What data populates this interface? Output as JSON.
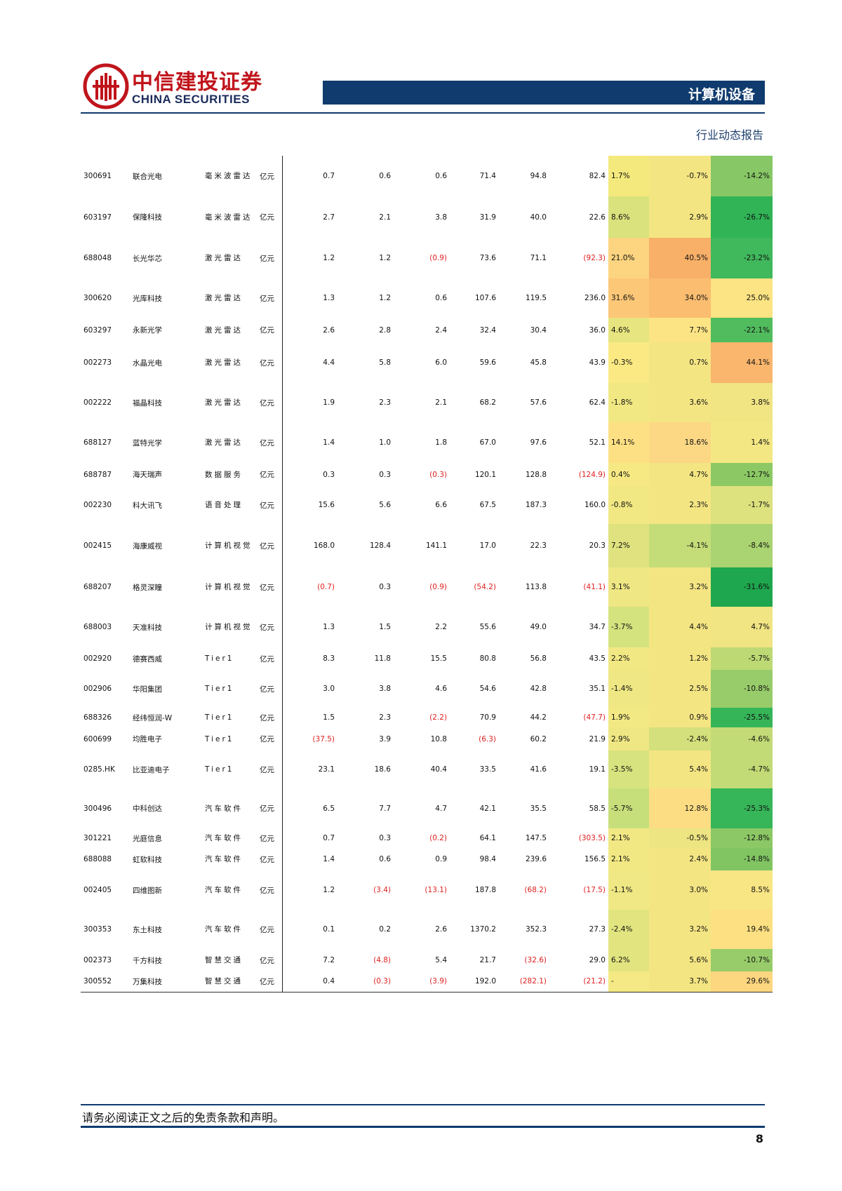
{
  "header": {
    "brand_cn": "中信建投证券",
    "brand_en": "CHINA SECURITIES",
    "section": "计算机设备",
    "report_type": "行业动态报告"
  },
  "colors": {
    "brand_red": "#c0141b",
    "navy": "#0f3b6e",
    "negative": "#e02020"
  },
  "table": {
    "rows": [
      {
        "code": "300691",
        "name": "联合光电",
        "industry": "毫米波雷达",
        "unit": "亿元",
        "v": [
          "0.7",
          "0.6",
          "0.6",
          "71.4",
          "94.8",
          "82.4"
        ],
        "p": [
          "1.7%",
          "-0.7%",
          "-14.2%"
        ],
        "c": [
          "#f4e97c",
          "#f4e583",
          "#87c766"
        ]
      },
      {
        "code": "603197",
        "name": "保隆科技",
        "industry": "毫米波雷达",
        "unit": "亿元",
        "v": [
          "2.7",
          "2.1",
          "3.8",
          "31.9",
          "40.0",
          "22.6"
        ],
        "p": [
          "8.6%",
          "2.9%",
          "-26.7%"
        ],
        "c": [
          "#d9e27c",
          "#f4e583",
          "#30b456"
        ]
      },
      {
        "code": "688048",
        "name": "长光华芯",
        "industry": "激光雷达",
        "unit": "亿元",
        "v": [
          "1.2",
          "1.2",
          "(0.9)",
          "73.6",
          "71.1",
          "(92.3)"
        ],
        "p": [
          "21.0%",
          "40.5%",
          "-23.2%"
        ],
        "c": [
          "#fdd47f",
          "#f8b068",
          "#40b85c"
        ]
      },
      {
        "code": "300620",
        "name": "光库科技",
        "industry": "激光雷达",
        "unit": "亿元",
        "v": [
          "1.3",
          "1.2",
          "0.6",
          "107.6",
          "119.5",
          "236.0"
        ],
        "p": [
          "31.6%",
          "34.0%",
          "25.0%"
        ],
        "c": [
          "#fdc778",
          "#fbbd70",
          "#fce383"
        ]
      },
      {
        "code": "603297",
        "name": "永新光学",
        "industry": "激光雷达",
        "unit": "亿元",
        "v": [
          "2.6",
          "2.8",
          "2.4",
          "32.4",
          "30.4",
          "36.0"
        ],
        "p": [
          "4.6%",
          "7.7%",
          "-22.1%"
        ],
        "c": [
          "#e6e57f",
          "#fce485",
          "#50bc5e"
        ]
      },
      {
        "code": "002273",
        "name": "水晶光电",
        "industry": "激光雷达",
        "unit": "亿元",
        "v": [
          "4.4",
          "5.8",
          "6.0",
          "59.6",
          "45.8",
          "43.9"
        ],
        "p": [
          "-0.3%",
          "0.7%",
          "44.1%"
        ],
        "c": [
          "#fbe983",
          "#f4e583",
          "#f9b66c"
        ]
      },
      {
        "code": "002222",
        "name": "福晶科技",
        "industry": "激光雷达",
        "unit": "亿元",
        "v": [
          "1.9",
          "2.3",
          "2.1",
          "68.2",
          "57.6",
          "62.4"
        ],
        "p": [
          "-1.8%",
          "3.6%",
          "3.8%"
        ],
        "c": [
          "#f1e883",
          "#f4e583",
          "#f1e483"
        ]
      },
      {
        "code": "688127",
        "name": "蓝特光学",
        "industry": "激光雷达",
        "unit": "亿元",
        "v": [
          "1.4",
          "1.0",
          "1.8",
          "67.0",
          "97.6",
          "52.1"
        ],
        "p": [
          "14.1%",
          "18.6%",
          "1.4%"
        ],
        "c": [
          "#fde083",
          "#fcd884",
          "#f3e783"
        ]
      },
      {
        "code": "688787",
        "name": "海天瑞声",
        "industry": "数据服务",
        "unit": "亿元",
        "v": [
          "0.3",
          "0.3",
          "(0.3)",
          "120.1",
          "128.8",
          "(124.9)"
        ],
        "p": [
          "0.4%",
          "4.7%",
          "-12.7%"
        ],
        "c": [
          "#f6e983",
          "#f4e583",
          "#8cc965"
        ]
      },
      {
        "code": "002230",
        "name": "科大讯飞",
        "industry": "语音处理",
        "unit": "亿元",
        "v": [
          "15.6",
          "5.6",
          "6.6",
          "67.5",
          "187.3",
          "160.0"
        ],
        "p": [
          "-0.8%",
          "2.3%",
          "-1.7%"
        ],
        "c": [
          "#f1e883",
          "#f4e583",
          "#dde17e"
        ]
      },
      {
        "code": "002415",
        "name": "海康威视",
        "industry": "计算机视觉",
        "unit": "亿元",
        "v": [
          "168.0",
          "128.4",
          "141.1",
          "17.0",
          "22.3",
          "20.3"
        ],
        "p": [
          "7.2%",
          "-4.1%",
          "-8.4%"
        ],
        "c": [
          "#dfe27e",
          "#c4dd78",
          "#aad371"
        ]
      },
      {
        "code": "688207",
        "name": "格灵深瞳",
        "industry": "计算机视觉",
        "unit": "亿元",
        "v": [
          "(0.7)",
          "0.3",
          "(0.9)",
          "(54.2)",
          "113.8",
          "(41.1)"
        ],
        "p": [
          "3.1%",
          "3.2%",
          "-31.6%"
        ],
        "c": [
          "#eee784",
          "#f4e583",
          "#1ea74e"
        ]
      },
      {
        "code": "688003",
        "name": "天准科技",
        "industry": "计算机视觉",
        "unit": "亿元",
        "v": [
          "1.3",
          "1.5",
          "2.2",
          "55.6",
          "49.0",
          "34.7"
        ],
        "p": [
          "-3.7%",
          "4.4%",
          "4.7%"
        ],
        "c": [
          "#d5e37e",
          "#f4e583",
          "#f0e483"
        ]
      },
      {
        "code": "002920",
        "name": "德赛西威",
        "industry": "Tier1",
        "unit": "亿元",
        "v": [
          "8.3",
          "11.8",
          "15.5",
          "80.8",
          "56.8",
          "43.5"
        ],
        "p": [
          "2.2%",
          "1.2%",
          "-5.7%"
        ],
        "c": [
          "#f1e884",
          "#f4e583",
          "#bcd974"
        ]
      },
      {
        "code": "002906",
        "name": "华阳集团",
        "industry": "Tier1",
        "unit": "亿元",
        "v": [
          "3.0",
          "3.8",
          "4.6",
          "54.6",
          "42.8",
          "35.1"
        ],
        "p": [
          "-1.4%",
          "2.5%",
          "-10.8%"
        ],
        "c": [
          "#eee784",
          "#f4e583",
          "#98cc6a"
        ]
      },
      {
        "code": "688326",
        "name": "经纬恒润-W",
        "industry": "Tier1",
        "unit": "亿元",
        "v": [
          "1.5",
          "2.3",
          "(2.2)",
          "70.9",
          "44.2",
          "(47.7)"
        ],
        "p": [
          "1.9%",
          "0.9%",
          "-25.5%"
        ],
        "c": [
          "#f3e984",
          "#f4e583",
          "#35b558"
        ]
      },
      {
        "code": "600699",
        "name": "均胜电子",
        "industry": "Tier1",
        "unit": "亿元",
        "v": [
          "(37.5)",
          "3.9",
          "10.8",
          "(6.3)",
          "60.2",
          "21.9"
        ],
        "p": [
          "2.9%",
          "-2.4%",
          "-4.6%"
        ],
        "c": [
          "#efe784",
          "#d3e07b",
          "#c3db76"
        ]
      },
      {
        "code": "0285.HK",
        "name": "比亚迪电子",
        "industry": "Tier1",
        "unit": "亿元",
        "v": [
          "23.1",
          "18.6",
          "40.4",
          "33.5",
          "41.6",
          "19.1"
        ],
        "p": [
          "-3.5%",
          "5.4%",
          "-4.7%"
        ],
        "c": [
          "#d7e37e",
          "#f4e583",
          "#c2db76"
        ]
      },
      {
        "code": "300496",
        "name": "中科创达",
        "industry": "汽车软件",
        "unit": "亿元",
        "v": [
          "6.5",
          "7.7",
          "4.7",
          "42.1",
          "35.5",
          "58.5"
        ],
        "p": [
          "-5.7%",
          "12.8%",
          "-25.3%"
        ],
        "c": [
          "#c6df7b",
          "#fcdd83",
          "#36b659"
        ]
      },
      {
        "code": "301221",
        "name": "光庭信息",
        "industry": "汽车软件",
        "unit": "亿元",
        "v": [
          "0.7",
          "0.3",
          "(0.2)",
          "64.1",
          "147.5",
          "(303.5)"
        ],
        "p": [
          "2.1%",
          "-0.5%",
          "-12.8%"
        ],
        "c": [
          "#f1e884",
          "#ede482",
          "#8cc865"
        ]
      },
      {
        "code": "688088",
        "name": "虹软科技",
        "industry": "汽车软件",
        "unit": "亿元",
        "v": [
          "1.4",
          "0.6",
          "0.9",
          "98.4",
          "239.6",
          "156.5"
        ],
        "p": [
          "2.1%",
          "2.4%",
          "-14.8%"
        ],
        "c": [
          "#f1e884",
          "#f4e583",
          "#81c563"
        ]
      },
      {
        "code": "002405",
        "name": "四维图新",
        "industry": "汽车软件",
        "unit": "亿元",
        "v": [
          "1.2",
          "(3.4)",
          "(13.1)",
          "187.8",
          "(68.2)",
          "(17.5)"
        ],
        "p": [
          "-1.1%",
          "3.0%",
          "8.5%"
        ],
        "c": [
          "#efe884",
          "#f4e583",
          "#f8e584"
        ]
      },
      {
        "code": "300353",
        "name": "东土科技",
        "industry": "汽车软件",
        "unit": "亿元",
        "v": [
          "0.1",
          "0.2",
          "2.6",
          "1370.2",
          "352.3",
          "27.3"
        ],
        "p": [
          "-2.4%",
          "3.2%",
          "19.4%"
        ],
        "c": [
          "#e2e57f",
          "#f4e583",
          "#fde082"
        ]
      },
      {
        "code": "002373",
        "name": "千方科技",
        "industry": "智慧交通",
        "unit": "亿元",
        "v": [
          "7.2",
          "(4.8)",
          "5.4",
          "21.7",
          "(32.6)",
          "29.0"
        ],
        "p": [
          "6.2%",
          "5.6%",
          "-10.7%"
        ],
        "c": [
          "#e2e47f",
          "#f4e583",
          "#98cc6a"
        ]
      },
      {
        "code": "300552",
        "name": "万集科技",
        "industry": "智慧交通",
        "unit": "亿元",
        "v": [
          "0.4",
          "(0.3)",
          "(3.9)",
          "192.0",
          "(282.1)",
          "(21.2)"
        ],
        "p": [
          "-",
          "3.7%",
          "29.6%"
        ],
        "c": [
          "#f4e984",
          "#f4e583",
          "#fdd680"
        ]
      }
    ]
  },
  "footer": {
    "disclaimer": "请务必阅读正文之后的免责条款和声明。",
    "page": "8"
  }
}
